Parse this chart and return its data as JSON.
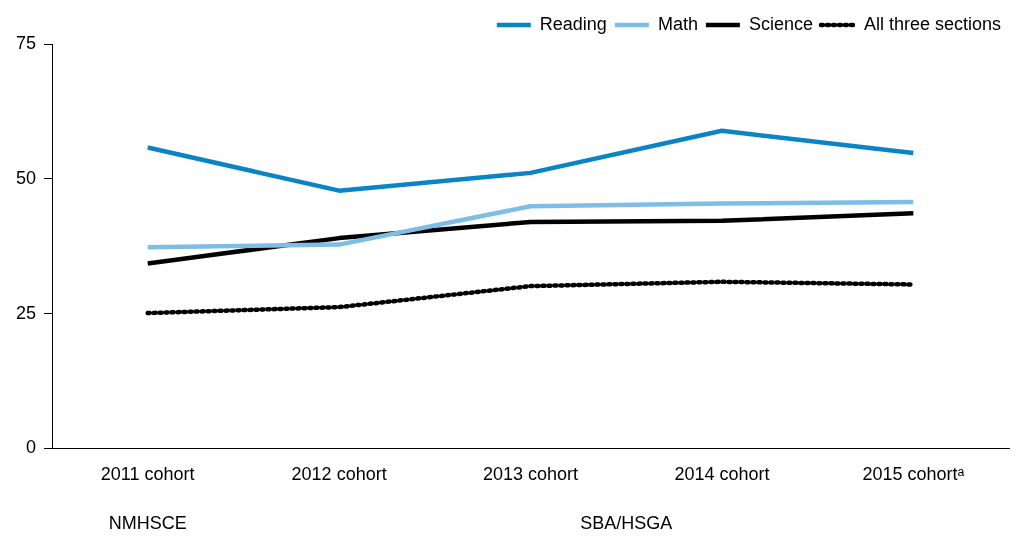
{
  "chart_data": {
    "type": "line",
    "categories": [
      "2011 cohort",
      "2012 cohort",
      "2013 cohort",
      "2014 cohort",
      "2015 cohortᵃ"
    ],
    "series": [
      {
        "name": "Reading",
        "color": "#0b84c6",
        "values": [
          55.8,
          47.8,
          51.1,
          58.9,
          54.8
        ]
      },
      {
        "name": "Math",
        "color": "#7dbde6",
        "values": [
          37.3,
          37.8,
          44.9,
          45.4,
          45.7
        ]
      },
      {
        "name": "Science",
        "color": "#000000",
        "values": [
          34.3,
          39.0,
          42.0,
          42.2,
          43.6
        ]
      },
      {
        "name": "All three sections",
        "color": "#000000",
        "values": [
          25.1,
          26.2,
          30.1,
          30.9,
          30.4
        ],
        "line_style": "dotted"
      }
    ],
    "ylim": [
      0,
      75
    ],
    "yticks": [
      0,
      25,
      50,
      75
    ],
    "grid": false,
    "legend": "top right",
    "marker": "none",
    "line_style": "solid",
    "annotations": [
      "NMHSCE",
      "SBA/HSGA"
    ]
  }
}
